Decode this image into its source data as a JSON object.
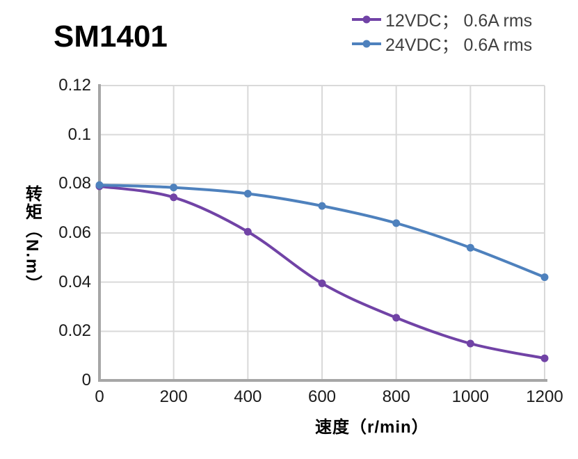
{
  "header": {
    "title": "SM1401"
  },
  "legend": {
    "position": "top-right",
    "items": [
      {
        "label": "12VDC； 0.6A rms",
        "color": "#7143A6"
      },
      {
        "label": "24VDC； 0.6A rms",
        "color": "#4E81BD"
      }
    ]
  },
  "chart_data": {
    "type": "line",
    "title": "SM1401",
    "xlabel": "速度（r/min）",
    "ylabel": "转矩（N.m）",
    "x": [
      0,
      200,
      400,
      600,
      800,
      1000,
      1200
    ],
    "series": [
      {
        "name": "12VDC； 0.6A rms",
        "color": "#7143A6",
        "values": [
          0.079,
          0.0745,
          0.0605,
          0.0395,
          0.0255,
          0.015,
          0.009
        ]
      },
      {
        "name": "24VDC； 0.6A rms",
        "color": "#4E81BD",
        "values": [
          0.0795,
          0.0785,
          0.076,
          0.071,
          0.064,
          0.054,
          0.042
        ]
      }
    ],
    "xlim": [
      0,
      1200
    ],
    "ylim": [
      0,
      0.12
    ],
    "x_ticks": [
      0,
      200,
      400,
      600,
      800,
      1000,
      1200
    ],
    "x_tick_labels": [
      "0",
      "200",
      "400",
      "600",
      "800",
      "1000",
      "1200"
    ],
    "y_ticks": [
      0,
      0.02,
      0.04,
      0.06,
      0.08,
      0.1,
      0.12
    ],
    "y_tick_labels": [
      "0",
      "0.02",
      "0.04",
      "0.06",
      "0.08",
      "0.1",
      "0.12"
    ],
    "grid": true,
    "smooth_lines": true,
    "colors": {
      "gridline": "#D9D9D9",
      "axis": "#A6A6A6",
      "tick_text": "#1a1a1a"
    }
  }
}
